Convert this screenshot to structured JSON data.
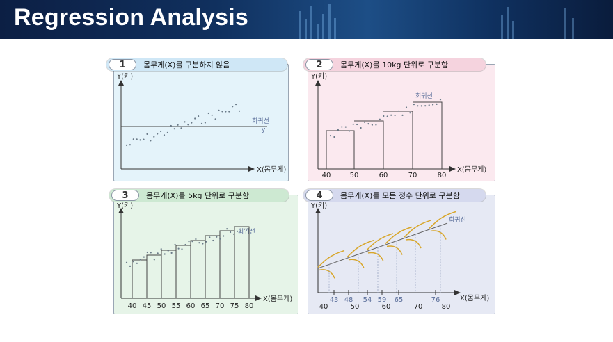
{
  "slide": {
    "title": "Regression Analysis"
  },
  "panels": [
    {
      "number": "1",
      "caption": "몸무게(X)를 구분하지 않음",
      "y_label": "Y(키)",
      "x_label": "X(몸무게)",
      "line_label": "회귀선",
      "line_sub": "ȳ",
      "ticks": []
    },
    {
      "number": "2",
      "caption": "몸무게(X)를 10kg 단위로 구분함",
      "y_label": "Y(키)",
      "x_label": "X(몸무게)",
      "line_label": "회귀선",
      "ticks": [
        "40",
        "50",
        "60",
        "70",
        "80"
      ]
    },
    {
      "number": "3",
      "caption": "몸무게(X)를 5kg 단위로 구분함",
      "y_label": "Y(키)",
      "x_label": "X(몸무게)",
      "line_label": "회귀선",
      "ticks": [
        "40",
        "45",
        "50",
        "55",
        "60",
        "65",
        "70",
        "75",
        "80"
      ]
    },
    {
      "number": "4",
      "caption": "몸무게(X)를 모든 정수 단위로 구분함",
      "y_label": "Y(키)",
      "x_label": "X(몸무게)",
      "line_label": "회귀선",
      "ticks_top": [
        "43",
        "48",
        "54",
        "59",
        "65",
        "76"
      ],
      "ticks_bottom": [
        "40",
        "50",
        "60",
        "70",
        "80"
      ]
    }
  ],
  "colors": {
    "panel1": "#e4f3fa",
    "panel2": "#fbe9ef",
    "panel3": "#e6f4e8",
    "panel4": "#e6e9f4",
    "pill1": "#cfe7f6",
    "pill2": "#f5d3de",
    "pill3": "#cde9d2",
    "pill4": "#d5d9ee",
    "label_blue": "#5a6e9a"
  }
}
